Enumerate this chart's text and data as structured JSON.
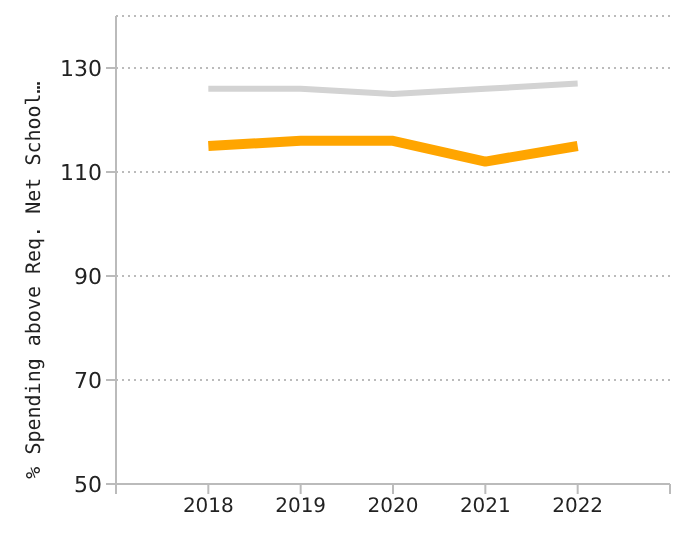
{
  "chart_data": {
    "type": "line",
    "ylabel": "% Spending above Req. Net School…",
    "x": [
      2018,
      2019,
      2020,
      2021,
      2022
    ],
    "series": [
      {
        "color": "#d3d3d3",
        "values": [
          126,
          126,
          125,
          126,
          127
        ]
      },
      {
        "color": "#ffa500",
        "values": [
          115,
          116,
          116,
          112,
          115
        ]
      }
    ],
    "xlim": [
      2017,
      2023
    ],
    "xticks": [
      {
        "value": 2017,
        "label": null
      },
      2018,
      2019,
      2020,
      2021,
      2022,
      {
        "value": 2023,
        "label": null
      }
    ],
    "ylim": [
      50,
      140
    ],
    "yticks": [
      50,
      70,
      90,
      110,
      130
    ],
    "grid": "y",
    "marker": "none",
    "line_style": "solid"
  }
}
